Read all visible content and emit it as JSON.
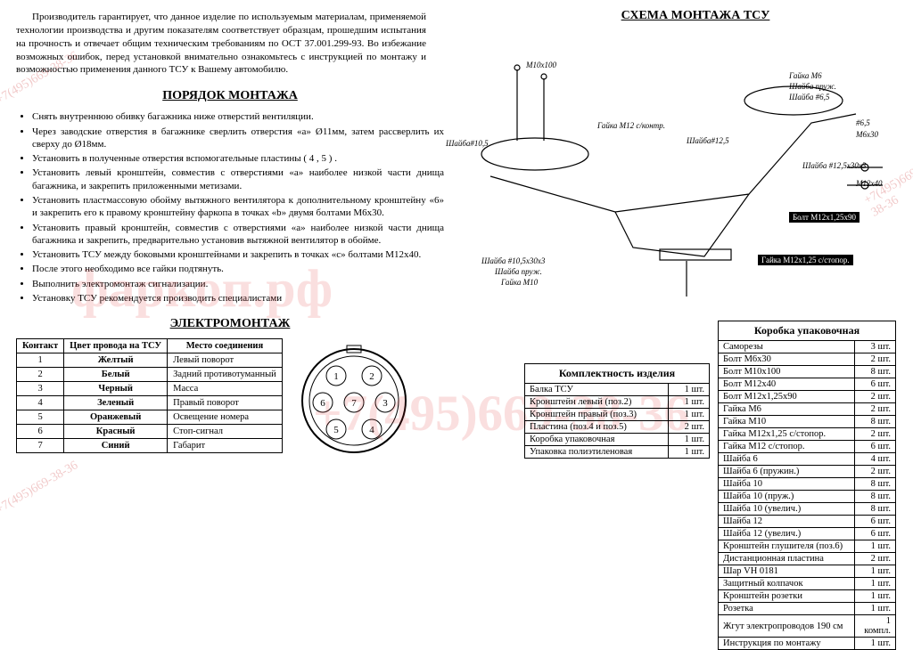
{
  "intro": "Производитель гарантирует, что данное изделие по используемым материалам, применяемой технологии производства и другим показателям соответствует образцам, прошедшим испытания на прочность и отвечает общим техническим требованиям по ОСТ 37.001.299-93. Во избежание возможных ошибок, перед установкой внимательно ознакомьтесь с инструкцией по монтажу и возможностью применения данного ТСУ к Вашему автомобилю.",
  "order_title": "ПОРЯДОК МОНТАЖА",
  "order_items": [
    "Снять внутреннюю обивку багажника ниже отверстий вентиляции.",
    "Через заводские отверстия в багажнике сверлить отверстия «а» Ø11мм, затем рассверлить их сверху до Ø18мм.",
    "Установить в полученные отверстия вспомогательные пластины ( 4 , 5 ) .",
    "Установить левый кронштейн, совместив с отверстиями «а» наиболее низкой части днища багажника, и закрепить приложенными метизами.",
    "Установить пластмассовую обойму вытяжного вентилятора к дополнительному кронштейну «6» и закрепить его к правому кронштейну фаркопа в точках «b» двумя болтами М6х30.",
    "Установить правый кронштейн, совместив с отверстиями «а» наиболее низкой части днища багажника и закрепить, предварительно установив вытяжной вентилятор в обойме.",
    "Установить ТСУ между боковыми кронштейнами и закрепить в точках «с» болтами М12х40.",
    "После этого необходимо все гайки подтянуть.",
    "Выполнить электромонтаж сигнализации.",
    "Установку ТСУ рекомендуется производить специалистами"
  ],
  "elektro_title": "ЭЛЕКТРОМОНТАЖ",
  "wiring": {
    "headers": [
      "Контакт",
      "Цвет провода на ТСУ",
      "Место соединения"
    ],
    "rows": [
      [
        "1",
        "Желтый",
        "Левый поворот"
      ],
      [
        "2",
        "Белый",
        "Задний противотуманный"
      ],
      [
        "3",
        "Черный",
        "Масса"
      ],
      [
        "4",
        "Зеленый",
        "Правый поворот"
      ],
      [
        "5",
        "Оранжевый",
        "Освещение номера"
      ],
      [
        "6",
        "Красный",
        "Стоп-сигнал"
      ],
      [
        "7",
        "Синий",
        "Габарит"
      ]
    ]
  },
  "connector_pins": [
    "1",
    "2",
    "3",
    "4",
    "5",
    "6",
    "7"
  ],
  "schema_title": "СХЕМА МОНТАЖА ТСУ",
  "schema_labels": {
    "l1": "М10х100",
    "l2": "Шайба#10,5",
    "l3": "Гайка М12 с/контр.",
    "l4": "Шайба#12,5",
    "l5": "Гайка М6",
    "l6": "Шайба пруж.",
    "l7": "Шайба #6,5",
    "l8": "#6,5",
    "l9": "М6х30",
    "l10": "Шайба #12,5х30х3",
    "l11": "М12х40",
    "l12": "Шайба #10,5х30х3",
    "l13": "Шайба пруж.",
    "l14": "Гайка М10",
    "tag1": "Болт М12х1,25х90",
    "tag2": "Гайка М12х1,25 с/стопор."
  },
  "parts": {
    "title": "Комплектность изделия",
    "rows": [
      [
        "Балка ТСУ",
        "1 шт."
      ],
      [
        "Кронштейн левый (поз.2)",
        "1 шт."
      ],
      [
        "Кронштейн правый (поз.3)",
        "1 шт."
      ],
      [
        "Пластина (поз.4 и поз.5)",
        "2 шт."
      ],
      [
        "Коробка упаковочная",
        "1 шт."
      ],
      [
        "Упаковка полиэтиленовая",
        "1 шт."
      ]
    ]
  },
  "box": {
    "title": "Коробка упаковочная",
    "rows": [
      [
        "Саморезы",
        "3 шт."
      ],
      [
        "Болт М6х30",
        "2 шт."
      ],
      [
        "Болт М10х100",
        "8 шт."
      ],
      [
        "Болт М12х40",
        "6 шт."
      ],
      [
        "Болт М12х1,25х90",
        "2 шт."
      ],
      [
        "Гайка М6",
        "2 шт."
      ],
      [
        "Гайка М10",
        "8 шт."
      ],
      [
        "Гайка М12х1,25 с/стопор.",
        "2 шт."
      ],
      [
        "Гайка М12 с/стопор.",
        "6 шт."
      ],
      [
        "Шайба 6",
        "4 шт."
      ],
      [
        "Шайба 6 (пружин.)",
        "2 шт."
      ],
      [
        "Шайба 10",
        "8 шт."
      ],
      [
        "Шайба 10 (пруж.)",
        "8 шт."
      ],
      [
        "Шайба 10 (увелич.)",
        "8 шт."
      ],
      [
        "Шайба 12",
        "6 шт."
      ],
      [
        "Шайба 12 (увелич.)",
        "6 шт."
      ],
      [
        "Кронштейн глушителя (поз.6)",
        "1 шт."
      ],
      [
        "Дистанционная пластина",
        "2 шт."
      ],
      [
        "Шар VH 0181",
        "1 шт."
      ],
      [
        "Защитный колпачок",
        "1 шт."
      ],
      [
        "Кронштейн розетки",
        "1 шт."
      ],
      [
        "Розетка",
        "1 шт."
      ],
      [
        "Жгут электропроводов 190 см",
        "1 компл."
      ],
      [
        "Инструкция по монтажу",
        "1 шт."
      ]
    ]
  },
  "watermark": {
    "main": "фаркоп.рф",
    "phone": "+7(495)669-38-36"
  }
}
